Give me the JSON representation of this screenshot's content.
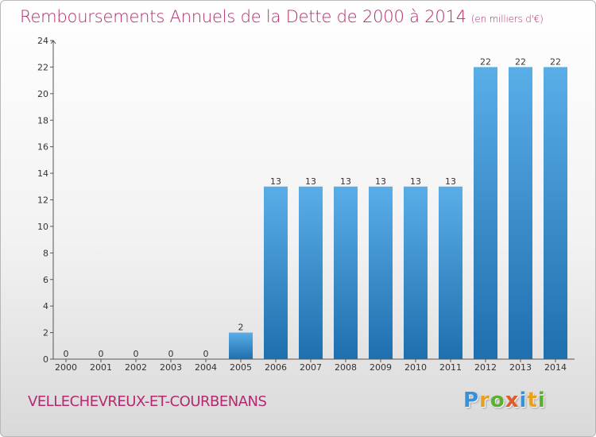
{
  "title": "Remboursements Annuels de la Dette de 2000 à 2014",
  "subtitle": "(en milliers d'€)",
  "commune": "VELLECHEVREUX-ET-COURBENANS",
  "logo_text": "Proxiti",
  "colors": {
    "title": "#b5296e",
    "bar_top": "#5aaee8",
    "bar_bottom": "#1e6fae",
    "logo": [
      "#3a8fd6",
      "#e8a020",
      "#5bb030",
      "#e05a2a",
      "#3a8fd6",
      "#e8a020",
      "#5bb030"
    ]
  },
  "chart_data": {
    "type": "bar",
    "categories": [
      "2000",
      "2001",
      "2002",
      "2003",
      "2004",
      "2005",
      "2006",
      "2007",
      "2008",
      "2009",
      "2010",
      "2011",
      "2012",
      "2013",
      "2014"
    ],
    "values": [
      0,
      0,
      0,
      0,
      0,
      2,
      13,
      13,
      13,
      13,
      13,
      13,
      22,
      22,
      22
    ],
    "value_labels": [
      "0",
      "0",
      "0",
      "0",
      "0",
      "2",
      "13",
      "13",
      "13",
      "13",
      "13",
      "13",
      "22",
      "22",
      "22"
    ],
    "ylim": [
      0,
      24
    ],
    "yticks": [
      "0",
      "2",
      "4",
      "6",
      "8",
      "10",
      "12",
      "14",
      "16",
      "18",
      "20",
      "22",
      "24"
    ],
    "grid": false,
    "legend": "none"
  }
}
